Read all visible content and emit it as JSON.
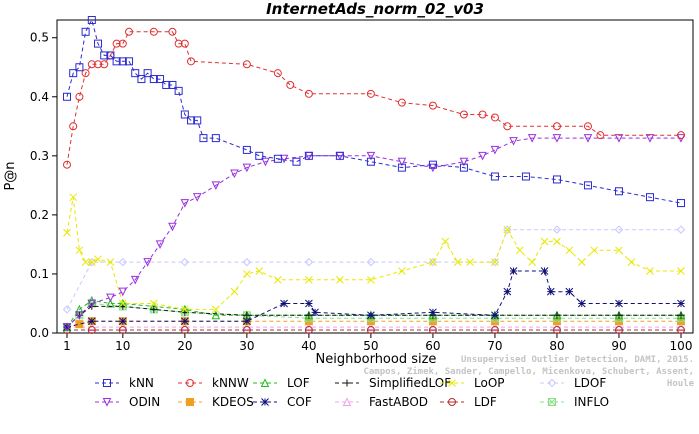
{
  "chart_data": {
    "type": "line",
    "title": "InternetAds_norm_02_v03",
    "xlabel": "Neighborhood size",
    "ylabel": "P@n",
    "xlim": [
      0,
      100
    ],
    "ylim": [
      0,
      0.53
    ],
    "x_ticks": [
      "1",
      "10",
      "20",
      "30",
      "40",
      "50",
      "60",
      "70",
      "80",
      "90",
      "100"
    ],
    "x_tick_values": [
      1,
      10,
      20,
      30,
      40,
      50,
      60,
      70,
      80,
      90,
      100
    ],
    "y_ticks": [
      "0.0",
      "0.1",
      "0.2",
      "0.3",
      "0.4",
      "0.5"
    ],
    "y_tick_values": [
      0,
      0.1,
      0.2,
      0.3,
      0.4,
      0.5
    ],
    "grid": false,
    "legend_placement": "bottom",
    "series": [
      {
        "name": "kNN",
        "color": "#2b2bd1",
        "marker": "square",
        "points": [
          [
            1,
            0.4
          ],
          [
            2,
            0.44
          ],
          [
            3,
            0.45
          ],
          [
            4,
            0.51
          ],
          [
            5,
            0.53
          ],
          [
            6,
            0.49
          ],
          [
            7,
            0.47
          ],
          [
            8,
            0.47
          ],
          [
            9,
            0.46
          ],
          [
            10,
            0.46
          ],
          [
            11,
            0.46
          ],
          [
            12,
            0.44
          ],
          [
            13,
            0.43
          ],
          [
            14,
            0.44
          ],
          [
            15,
            0.43
          ],
          [
            16,
            0.43
          ],
          [
            17,
            0.42
          ],
          [
            18,
            0.42
          ],
          [
            19,
            0.41
          ],
          [
            20,
            0.37
          ],
          [
            21,
            0.36
          ],
          [
            22,
            0.36
          ],
          [
            23,
            0.33
          ],
          [
            25,
            0.33
          ],
          [
            30,
            0.31
          ],
          [
            32,
            0.3
          ],
          [
            35,
            0.295
          ],
          [
            38,
            0.29
          ],
          [
            40,
            0.3
          ],
          [
            45,
            0.3
          ],
          [
            50,
            0.29
          ],
          [
            55,
            0.28
          ],
          [
            60,
            0.285
          ],
          [
            65,
            0.28
          ],
          [
            70,
            0.265
          ],
          [
            75,
            0.265
          ],
          [
            80,
            0.26
          ],
          [
            85,
            0.25
          ],
          [
            90,
            0.24
          ],
          [
            95,
            0.23
          ],
          [
            100,
            0.22
          ]
        ]
      },
      {
        "name": "kNNW",
        "color": "#e03030",
        "marker": "circle",
        "points": [
          [
            1,
            0.285
          ],
          [
            2,
            0.35
          ],
          [
            3,
            0.4
          ],
          [
            4,
            0.44
          ],
          [
            5,
            0.455
          ],
          [
            6,
            0.455
          ],
          [
            7,
            0.455
          ],
          [
            8,
            0.47
          ],
          [
            9,
            0.49
          ],
          [
            10,
            0.49
          ],
          [
            11,
            0.51
          ],
          [
            15,
            0.51
          ],
          [
            18,
            0.51
          ],
          [
            19,
            0.49
          ],
          [
            20,
            0.49
          ],
          [
            21,
            0.46
          ],
          [
            30,
            0.455
          ],
          [
            35,
            0.44
          ],
          [
            37,
            0.42
          ],
          [
            40,
            0.405
          ],
          [
            50,
            0.405
          ],
          [
            55,
            0.39
          ],
          [
            60,
            0.385
          ],
          [
            65,
            0.37
          ],
          [
            68,
            0.37
          ],
          [
            70,
            0.365
          ],
          [
            72,
            0.35
          ],
          [
            80,
            0.35
          ],
          [
            85,
            0.35
          ],
          [
            87,
            0.335
          ],
          [
            100,
            0.335
          ]
        ]
      },
      {
        "name": "LOF",
        "color": "#22bb22",
        "marker": "triangle",
        "points": [
          [
            1,
            0.01
          ],
          [
            3,
            0.04
          ],
          [
            5,
            0.055
          ],
          [
            8,
            0.05
          ],
          [
            10,
            0.05
          ],
          [
            15,
            0.045
          ],
          [
            20,
            0.04
          ],
          [
            25,
            0.03
          ],
          [
            30,
            0.03
          ],
          [
            40,
            0.03
          ],
          [
            50,
            0.03
          ],
          [
            60,
            0.03
          ],
          [
            70,
            0.03
          ],
          [
            80,
            0.03
          ],
          [
            90,
            0.03
          ],
          [
            100,
            0.03
          ]
        ]
      },
      {
        "name": "SimplifiedLOF",
        "color": "#111111",
        "marker": "plus",
        "points": [
          [
            1,
            0.01
          ],
          [
            3,
            0.03
          ],
          [
            5,
            0.045
          ],
          [
            10,
            0.045
          ],
          [
            15,
            0.04
          ],
          [
            20,
            0.035
          ],
          [
            30,
            0.03
          ],
          [
            40,
            0.03
          ],
          [
            50,
            0.03
          ],
          [
            60,
            0.03
          ],
          [
            70,
            0.03
          ],
          [
            80,
            0.03
          ],
          [
            90,
            0.03
          ],
          [
            100,
            0.03
          ]
        ]
      },
      {
        "name": "LoOP",
        "color": "#e8e800",
        "marker": "x",
        "points": [
          [
            1,
            0.17
          ],
          [
            2,
            0.23
          ],
          [
            3,
            0.14
          ],
          [
            4,
            0.12
          ],
          [
            5,
            0.12
          ],
          [
            6,
            0.125
          ],
          [
            8,
            0.12
          ],
          [
            10,
            0.05
          ],
          [
            15,
            0.05
          ],
          [
            20,
            0.04
          ],
          [
            25,
            0.04
          ],
          [
            28,
            0.07
          ],
          [
            30,
            0.1
          ],
          [
            32,
            0.105
          ],
          [
            35,
            0.09
          ],
          [
            40,
            0.09
          ],
          [
            45,
            0.09
          ],
          [
            50,
            0.09
          ],
          [
            55,
            0.105
          ],
          [
            60,
            0.12
          ],
          [
            62,
            0.155
          ],
          [
            64,
            0.12
          ],
          [
            66,
            0.12
          ],
          [
            70,
            0.12
          ],
          [
            72,
            0.175
          ],
          [
            74,
            0.14
          ],
          [
            76,
            0.12
          ],
          [
            78,
            0.155
          ],
          [
            80,
            0.155
          ],
          [
            82,
            0.14
          ],
          [
            84,
            0.12
          ],
          [
            86,
            0.14
          ],
          [
            90,
            0.14
          ],
          [
            92,
            0.12
          ],
          [
            95,
            0.105
          ],
          [
            100,
            0.105
          ]
        ]
      },
      {
        "name": "LDOF",
        "color": "#c8c8ff",
        "marker": "diamond",
        "points": [
          [
            1,
            0.04
          ],
          [
            5,
            0.12
          ],
          [
            10,
            0.12
          ],
          [
            20,
            0.12
          ],
          [
            30,
            0.12
          ],
          [
            40,
            0.12
          ],
          [
            50,
            0.12
          ],
          [
            60,
            0.12
          ],
          [
            70,
            0.12
          ],
          [
            72,
            0.175
          ],
          [
            80,
            0.175
          ],
          [
            90,
            0.175
          ],
          [
            100,
            0.175
          ]
        ]
      },
      {
        "name": "ODIN",
        "color": "#9a30e0",
        "marker": "triangle-down",
        "points": [
          [
            1,
            0.01
          ],
          [
            3,
            0.03
          ],
          [
            5,
            0.05
          ],
          [
            8,
            0.06
          ],
          [
            10,
            0.07
          ],
          [
            12,
            0.09
          ],
          [
            14,
            0.12
          ],
          [
            16,
            0.15
          ],
          [
            18,
            0.18
          ],
          [
            20,
            0.22
          ],
          [
            22,
            0.23
          ],
          [
            25,
            0.25
          ],
          [
            28,
            0.27
          ],
          [
            30,
            0.28
          ],
          [
            33,
            0.29
          ],
          [
            36,
            0.295
          ],
          [
            40,
            0.3
          ],
          [
            45,
            0.3
          ],
          [
            50,
            0.3
          ],
          [
            55,
            0.29
          ],
          [
            60,
            0.28
          ],
          [
            65,
            0.29
          ],
          [
            68,
            0.3
          ],
          [
            70,
            0.31
          ],
          [
            73,
            0.325
          ],
          [
            76,
            0.33
          ],
          [
            80,
            0.33
          ],
          [
            85,
            0.33
          ],
          [
            90,
            0.33
          ],
          [
            95,
            0.33
          ],
          [
            100,
            0.33
          ]
        ]
      },
      {
        "name": "KDEOS",
        "color": "#f0a020",
        "marker": "square-filled",
        "points": [
          [
            1,
            0.01
          ],
          [
            3,
            0.015
          ],
          [
            5,
            0.02
          ],
          [
            10,
            0.02
          ],
          [
            20,
            0.02
          ],
          [
            30,
            0.02
          ],
          [
            40,
            0.02
          ],
          [
            50,
            0.02
          ],
          [
            60,
            0.02
          ],
          [
            70,
            0.02
          ],
          [
            80,
            0.02
          ],
          [
            90,
            0.02
          ],
          [
            100,
            0.02
          ]
        ]
      },
      {
        "name": "COF",
        "color": "#10107a",
        "marker": "asterisk",
        "points": [
          [
            1,
            0.01
          ],
          [
            5,
            0.02
          ],
          [
            10,
            0.02
          ],
          [
            20,
            0.02
          ],
          [
            30,
            0.02
          ],
          [
            36,
            0.05
          ],
          [
            40,
            0.05
          ],
          [
            41,
            0.035
          ],
          [
            50,
            0.03
          ],
          [
            60,
            0.035
          ],
          [
            70,
            0.03
          ],
          [
            72,
            0.07
          ],
          [
            73,
            0.105
          ],
          [
            78,
            0.105
          ],
          [
            79,
            0.07
          ],
          [
            82,
            0.07
          ],
          [
            84,
            0.05
          ],
          [
            90,
            0.05
          ],
          [
            100,
            0.05
          ]
        ]
      },
      {
        "name": "FastABOD",
        "color": "#f0a0f0",
        "marker": "triangle",
        "points": [
          [
            1,
            0.01
          ],
          [
            5,
            0.01
          ],
          [
            10,
            0.01
          ],
          [
            20,
            0.01
          ],
          [
            30,
            0.01
          ],
          [
            40,
            0.01
          ],
          [
            50,
            0.01
          ],
          [
            60,
            0.01
          ],
          [
            70,
            0.01
          ],
          [
            80,
            0.01
          ],
          [
            90,
            0.01
          ],
          [
            100,
            0.01
          ]
        ]
      },
      {
        "name": "LDF",
        "color": "#b03030",
        "marker": "circle-cross",
        "points": [
          [
            1,
            0.005
          ],
          [
            5,
            0.005
          ],
          [
            10,
            0.005
          ],
          [
            20,
            0.005
          ],
          [
            30,
            0.005
          ],
          [
            40,
            0.005
          ],
          [
            50,
            0.005
          ],
          [
            60,
            0.005
          ],
          [
            70,
            0.005
          ],
          [
            80,
            0.005
          ],
          [
            90,
            0.005
          ],
          [
            100,
            0.005
          ]
        ]
      },
      {
        "name": "INFLO",
        "color": "#88e088",
        "marker": "square-x",
        "points": [
          [
            1,
            0.01
          ],
          [
            3,
            0.03
          ],
          [
            5,
            0.05
          ],
          [
            10,
            0.045
          ],
          [
            15,
            0.04
          ],
          [
            20,
            0.035
          ],
          [
            30,
            0.03
          ],
          [
            40,
            0.025
          ],
          [
            50,
            0.025
          ],
          [
            60,
            0.025
          ],
          [
            70,
            0.025
          ],
          [
            80,
            0.025
          ],
          [
            90,
            0.025
          ],
          [
            100,
            0.025
          ]
        ]
      }
    ],
    "legend_order": [
      "kNN",
      "kNNW",
      "LOF",
      "SimplifiedLOF",
      "LoOP",
      "LDOF",
      "ODIN",
      "KDEOS",
      "COF",
      "FastABOD",
      "LDF",
      "INFLO"
    ]
  },
  "credit": {
    "line1": "Unsupervised Outlier Detection, DAMI, 2015.",
    "line2": "Campos, Zimek, Sander, Campello, Micenkova, Schubert, Assent, Houle"
  }
}
